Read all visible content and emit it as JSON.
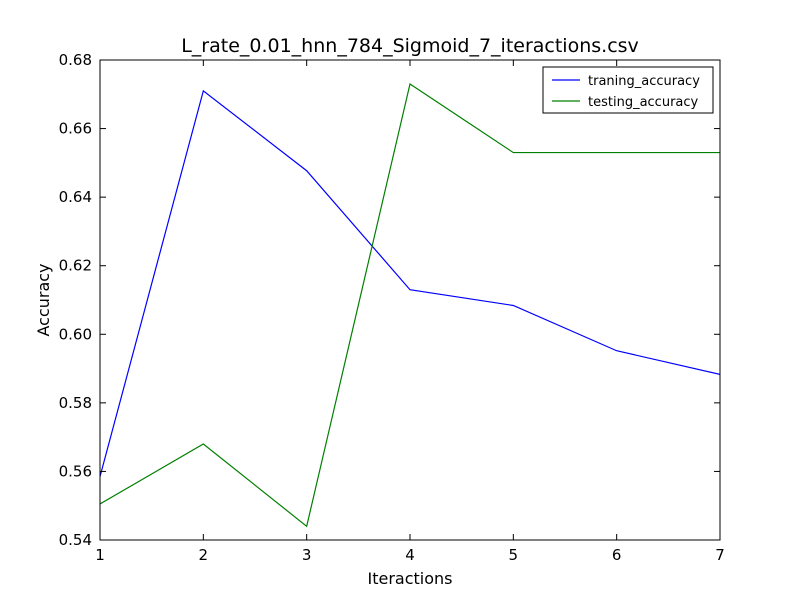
{
  "chart_data": {
    "type": "line",
    "title": "L_rate_0.01_hnn_784_Sigmoid_7_iteractions.csv",
    "xlabel": "Iteractions",
    "ylabel": "Accuracy",
    "xlim": [
      1,
      7
    ],
    "ylim": [
      0.54,
      0.68
    ],
    "x": [
      1,
      2,
      3,
      4,
      5,
      6,
      7
    ],
    "xticks": [
      1,
      2,
      3,
      4,
      5,
      6,
      7
    ],
    "xtick_labels": [
      "1",
      "2",
      "3",
      "4",
      "5",
      "6",
      "7"
    ],
    "yticks": [
      0.54,
      0.56,
      0.58,
      0.6,
      0.62,
      0.64,
      0.66,
      0.68
    ],
    "ytick_labels": [
      "0.54",
      "0.56",
      "0.58",
      "0.60",
      "0.62",
      "0.64",
      "0.66",
      "0.68"
    ],
    "grid": false,
    "legend_position": "top-right",
    "series": [
      {
        "name": "traning_accuracy",
        "color": "#0000ff",
        "values": [
          0.5585,
          0.671,
          0.6477,
          0.613,
          0.6084,
          0.5952,
          0.5883
        ]
      },
      {
        "name": "testing_accuracy",
        "color": "#008000",
        "values": [
          0.5505,
          0.568,
          0.544,
          0.673,
          0.653,
          0.653,
          0.653
        ]
      }
    ]
  }
}
